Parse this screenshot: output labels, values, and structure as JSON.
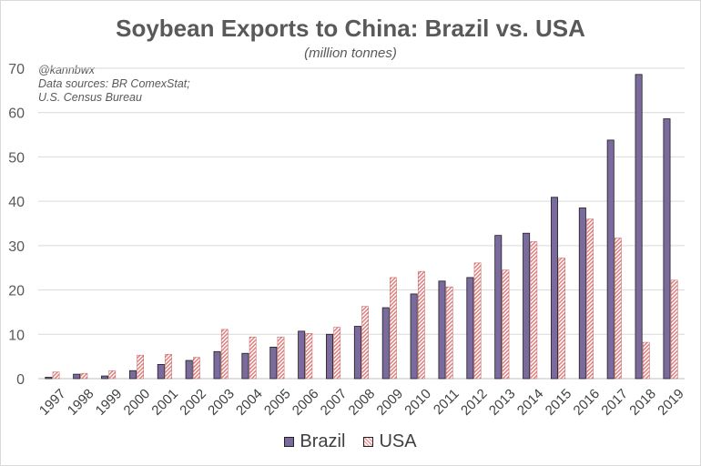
{
  "chart_data": {
    "type": "bar",
    "title": "Soybean Exports to China: Brazil vs. USA",
    "subtitle": "(million tonnes)",
    "notes": [
      "@kannbwx",
      "Data sources: BR ComexStat;",
      "U.S. Census Bureau"
    ],
    "categories": [
      "1997",
      "1998",
      "1999",
      "2000",
      "2001",
      "2002",
      "2003",
      "2004",
      "2005",
      "2006",
      "2007",
      "2008",
      "2009",
      "2010",
      "2011",
      "2012",
      "2013",
      "2014",
      "2015",
      "2016",
      "2017",
      "2018",
      "2019"
    ],
    "series": [
      {
        "name": "Brazil",
        "color": "#7b6a9e",
        "values": [
          0.3,
          1.0,
          0.6,
          1.8,
          3.2,
          4.1,
          6.1,
          5.7,
          7.1,
          10.7,
          10.0,
          11.8,
          16.0,
          19.1,
          22.0,
          22.8,
          32.3,
          32.8,
          40.9,
          38.5,
          53.8,
          68.6,
          58.6
        ]
      },
      {
        "name": "USA",
        "color": "#e8a0a0",
        "pattern": "diagonal-hatch",
        "values": [
          1.5,
          1.2,
          1.8,
          5.3,
          5.5,
          4.8,
          11.1,
          9.4,
          9.4,
          10.2,
          11.6,
          16.3,
          22.8,
          24.2,
          20.7,
          26.1,
          24.5,
          30.9,
          27.2,
          36.0,
          31.7,
          8.2,
          22.2
        ]
      }
    ],
    "ylim": [
      0,
      70
    ],
    "yticks": [
      0,
      10,
      20,
      30,
      40,
      50,
      60,
      70
    ],
    "grid": true,
    "legend": "bottom"
  }
}
